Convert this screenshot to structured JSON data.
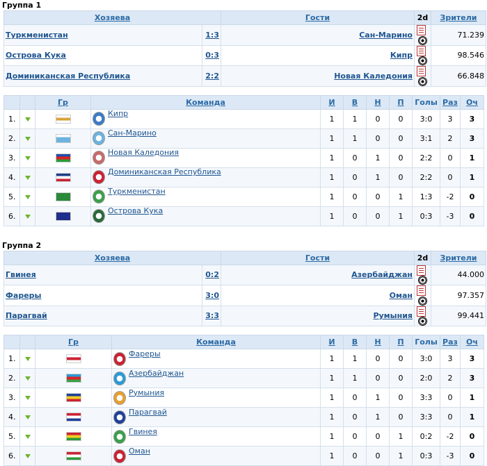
{
  "groups": [
    {
      "title": "Группа 1",
      "matches_header": {
        "home": "Хозяева",
        "away": "Гости",
        "two_d": "2d",
        "spectators": "Зрители"
      },
      "matches": [
        {
          "home": "Туркменистан",
          "score": "1:3",
          "away": "Сан-Марино",
          "spectators": "71.239"
        },
        {
          "home": "Острова Кука",
          "score": "0:3",
          "away": "Кипр",
          "spectators": "98.546"
        },
        {
          "home": "Доминиканская Республика",
          "score": "2:2",
          "away": "Новая Каледония",
          "spectators": "66.848"
        }
      ],
      "standings_header": {
        "group": "Гр",
        "team": "Команда",
        "played": "И",
        "won": "В",
        "drawn": "Н",
        "lost": "П",
        "goals": "Голы",
        "diff": "Раз",
        "points": "Оч"
      },
      "standings": [
        {
          "pos": "1.",
          "team": "Кипр",
          "flag": [
            "#ffffff",
            "#d9a23a",
            "#ffffff"
          ],
          "crest": "#3a7bc8",
          "p": "1",
          "w": "1",
          "d": "0",
          "l": "0",
          "goals": "3:0",
          "diff": "3",
          "pts": "3"
        },
        {
          "pos": "2.",
          "team": "Сан-Марино",
          "flag": [
            "#ffffff",
            "#6cb3e0",
            "#6cb3e0"
          ],
          "crest": "#6cb3e0",
          "p": "1",
          "w": "1",
          "d": "0",
          "l": "0",
          "goals": "3:1",
          "diff": "2",
          "pts": "3"
        },
        {
          "pos": "3.",
          "team": "Новая Каледония",
          "flag": [
            "#1f4fa8",
            "#d22",
            "#2a9a3a"
          ],
          "crest": "#c86a6a",
          "p": "1",
          "w": "0",
          "d": "1",
          "l": "0",
          "goals": "2:2",
          "diff": "0",
          "pts": "1"
        },
        {
          "pos": "4.",
          "team": "Доминиканская Республика",
          "flag": [
            "#1f3f8a",
            "#ffffff",
            "#cc2233"
          ],
          "crest": "#cc2233",
          "p": "1",
          "w": "0",
          "d": "1",
          "l": "0",
          "goals": "2:2",
          "diff": "0",
          "pts": "1"
        },
        {
          "pos": "5.",
          "team": "Туркменистан",
          "flag": [
            "#2a8a3a",
            "#2a8a3a",
            "#2a8a3a"
          ],
          "crest": "#3aa04a",
          "p": "1",
          "w": "0",
          "d": "0",
          "l": "1",
          "goals": "1:3",
          "diff": "-2",
          "pts": "0"
        },
        {
          "pos": "6.",
          "team": "Острова Кука",
          "flag": [
            "#1f2f8a",
            "#1f2f8a",
            "#1f2f8a"
          ],
          "crest": "#2a6a3a",
          "p": "1",
          "w": "0",
          "d": "0",
          "l": "1",
          "goals": "0:3",
          "diff": "-3",
          "pts": "0"
        }
      ]
    },
    {
      "title": "Группа 2",
      "matches_header": {
        "home": "Хозяева",
        "away": "Гости",
        "two_d": "2d",
        "spectators": "Зрители"
      },
      "matches": [
        {
          "home": "Гвинея",
          "score": "0:2",
          "away": "Азербайджан",
          "spectators": "44.000"
        },
        {
          "home": "Фареры",
          "score": "3:0",
          "away": "Оман",
          "spectators": "97.357"
        },
        {
          "home": "Парагвай",
          "score": "3:3",
          "away": "Румыния",
          "spectators": "99.441"
        }
      ],
      "standings_header": {
        "group": "Гр",
        "team": "Команда",
        "played": "И",
        "won": "В",
        "drawn": "Н",
        "lost": "П",
        "goals": "Голы",
        "diff": "Раз",
        "points": "Оч"
      },
      "standings": [
        {
          "pos": "1.",
          "team": "Фареры",
          "flag": [
            "#ffffff",
            "#cc2233",
            "#ffffff"
          ],
          "crest": "#cc2233",
          "p": "1",
          "w": "1",
          "d": "0",
          "l": "0",
          "goals": "3:0",
          "diff": "3",
          "pts": "3"
        },
        {
          "pos": "2.",
          "team": "Азербайджан",
          "flag": [
            "#2a9ad8",
            "#d22",
            "#3aa04a"
          ],
          "crest": "#2a9ad8",
          "p": "1",
          "w": "1",
          "d": "0",
          "l": "0",
          "goals": "2:0",
          "diff": "2",
          "pts": "3"
        },
        {
          "pos": "3.",
          "team": "Румыния",
          "flag": [
            "#1f3f9a",
            "#f2cc22",
            "#cc2233"
          ],
          "crest": "#e8a030",
          "p": "1",
          "w": "0",
          "d": "1",
          "l": "0",
          "goals": "3:3",
          "diff": "0",
          "pts": "1"
        },
        {
          "pos": "4.",
          "team": "Парагвай",
          "flag": [
            "#cc2233",
            "#ffffff",
            "#1f3f9a"
          ],
          "crest": "#1f3f9a",
          "p": "1",
          "w": "0",
          "d": "1",
          "l": "0",
          "goals": "3:3",
          "diff": "0",
          "pts": "1"
        },
        {
          "pos": "5.",
          "team": "Гвинея",
          "flag": [
            "#cc2233",
            "#f2cc22",
            "#2a9a3a"
          ],
          "crest": "#3aa04a",
          "p": "1",
          "w": "0",
          "d": "0",
          "l": "1",
          "goals": "0:2",
          "diff": "-2",
          "pts": "0"
        },
        {
          "pos": "6.",
          "team": "Оман",
          "flag": [
            "#cc2233",
            "#ffffff",
            "#2a9a3a"
          ],
          "crest": "#cc2233",
          "p": "1",
          "w": "0",
          "d": "0",
          "l": "1",
          "goals": "0:3",
          "diff": "-3",
          "pts": "0"
        }
      ]
    }
  ],
  "icons": {
    "report": "notepad-icon",
    "view_2d": "football-icon",
    "trend": "arrow-down-icon"
  }
}
